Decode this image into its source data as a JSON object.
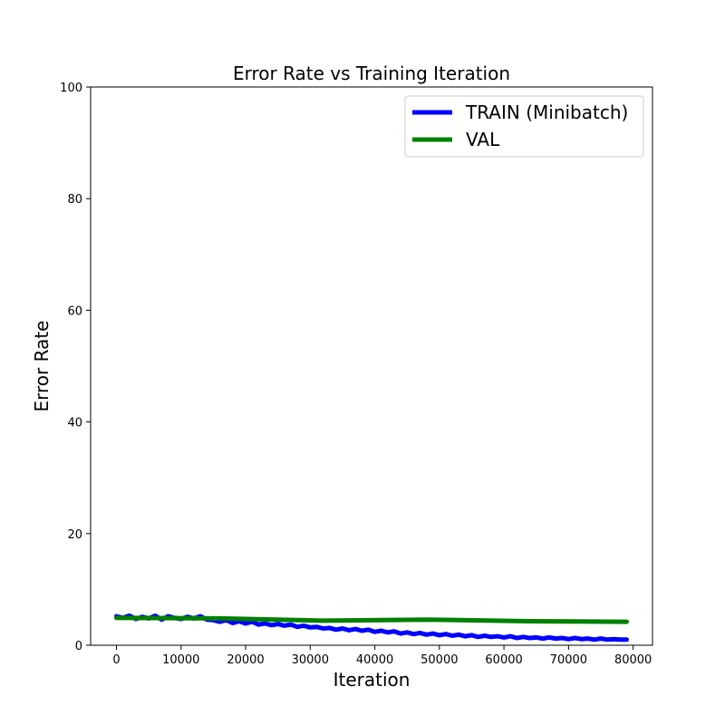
{
  "chart_data": {
    "type": "line",
    "title": "Error Rate vs Training Iteration",
    "xlabel": "Iteration",
    "ylabel": "Error Rate",
    "xlim": [
      -4000,
      83000
    ],
    "ylim": [
      0,
      100
    ],
    "xticks": [
      0,
      10000,
      20000,
      30000,
      40000,
      50000,
      60000,
      70000,
      80000
    ],
    "yticks": [
      0,
      20,
      40,
      60,
      80,
      100
    ],
    "grid": false,
    "legend_position": "top-right",
    "series": [
      {
        "name": "TRAIN (Minibatch)",
        "color": "#0000ff",
        "x": [
          0,
          1000,
          2000,
          3000,
          4000,
          5000,
          6000,
          7000,
          8000,
          9000,
          10000,
          11000,
          12000,
          13000,
          14000,
          15000,
          16000,
          17000,
          18000,
          19000,
          20000,
          21000,
          22000,
          23000,
          24000,
          25000,
          26000,
          27000,
          28000,
          29000,
          30000,
          31000,
          32000,
          33000,
          34000,
          35000,
          36000,
          37000,
          38000,
          39000,
          40000,
          41000,
          42000,
          43000,
          44000,
          45000,
          46000,
          47000,
          48000,
          49000,
          50000,
          51000,
          52000,
          53000,
          54000,
          55000,
          56000,
          57000,
          58000,
          59000,
          60000,
          61000,
          62000,
          63000,
          64000,
          65000,
          66000,
          67000,
          68000,
          69000,
          70000,
          71000,
          72000,
          73000,
          74000,
          75000,
          76000,
          77000,
          78000,
          79000
        ],
        "values": [
          5.2,
          4.9,
          5.3,
          4.7,
          5.1,
          4.8,
          5.3,
          4.6,
          5.2,
          4.9,
          4.7,
          5.1,
          4.8,
          5.2,
          4.6,
          4.5,
          4.2,
          4.5,
          4.0,
          4.3,
          3.9,
          4.2,
          3.7,
          3.9,
          3.6,
          3.8,
          3.5,
          3.7,
          3.3,
          3.5,
          3.2,
          3.3,
          3.0,
          3.1,
          2.8,
          3.0,
          2.7,
          2.9,
          2.6,
          2.8,
          2.4,
          2.6,
          2.3,
          2.5,
          2.1,
          2.3,
          2.0,
          2.2,
          1.9,
          2.1,
          1.8,
          2.0,
          1.7,
          1.9,
          1.6,
          1.8,
          1.5,
          1.7,
          1.5,
          1.6,
          1.4,
          1.6,
          1.3,
          1.5,
          1.3,
          1.4,
          1.2,
          1.4,
          1.2,
          1.3,
          1.1,
          1.3,
          1.1,
          1.2,
          1.0,
          1.2,
          1.0,
          1.1,
          1.0,
          1.0
        ]
      },
      {
        "name": "VAL",
        "color": "#008000",
        "x": [
          0,
          16000,
          32000,
          48000,
          64000,
          79000
        ],
        "values": [
          4.9,
          4.8,
          4.4,
          4.6,
          4.3,
          4.2
        ]
      }
    ]
  }
}
